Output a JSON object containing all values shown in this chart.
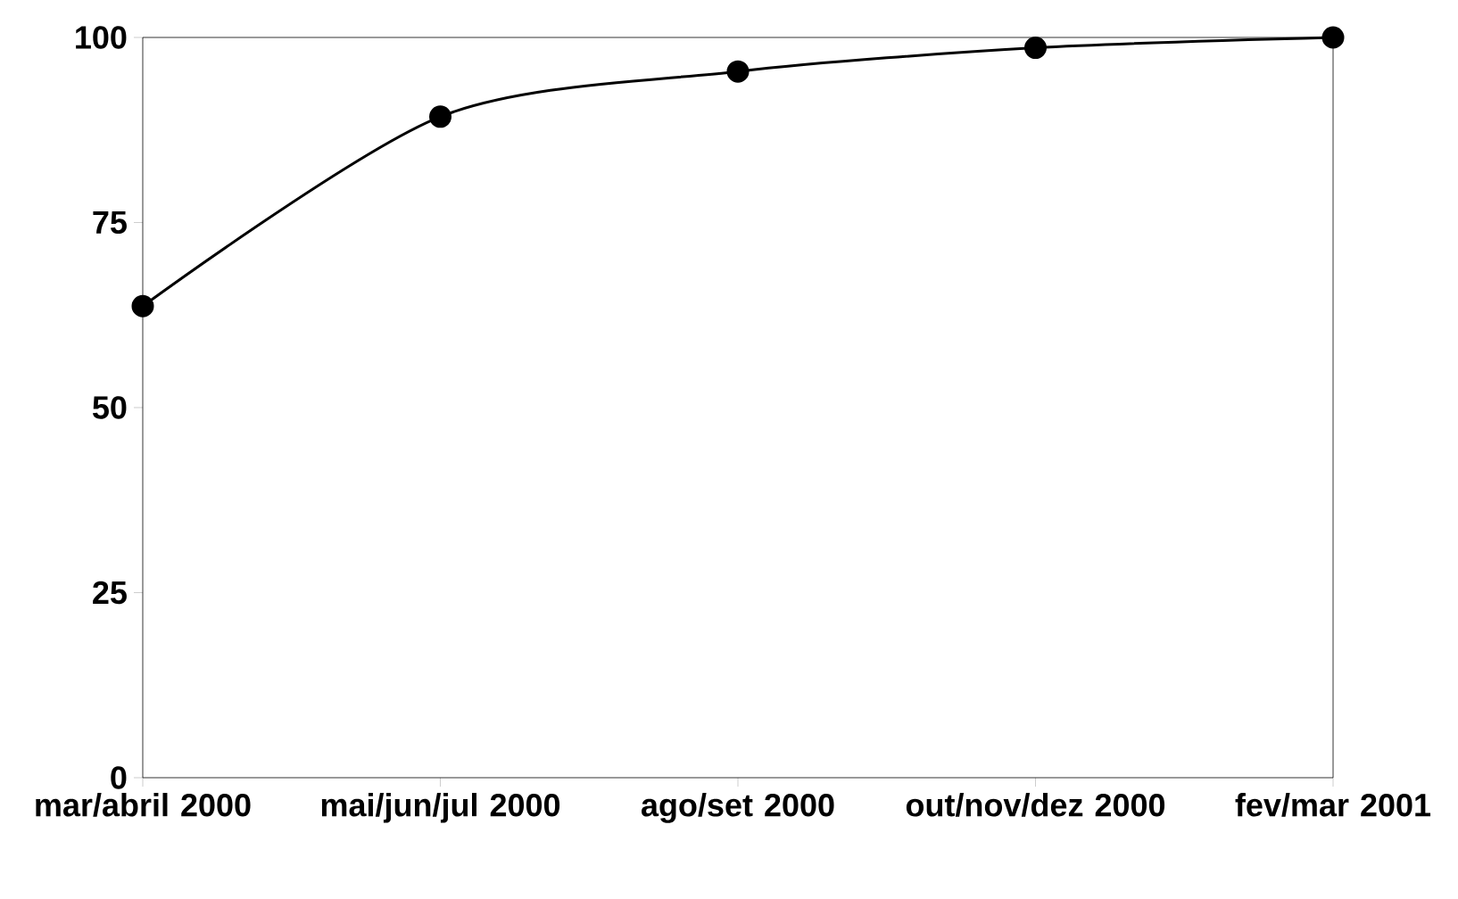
{
  "chart_data": {
    "type": "line",
    "categories": [
      "mar/abril 2000",
      "mai/jun/jul 2000",
      "ago/set 2000",
      "out/nov/dez 2000",
      "fev/mar 2001"
    ],
    "series": [
      {
        "color": "#000000",
        "values": [
          63.7,
          89.3,
          95.4,
          98.6,
          100
        ]
      }
    ],
    "ylim": [
      0,
      100
    ],
    "yticks": [
      0,
      25,
      50,
      75,
      100
    ],
    "marker": "circle",
    "line_style": "solid"
  }
}
